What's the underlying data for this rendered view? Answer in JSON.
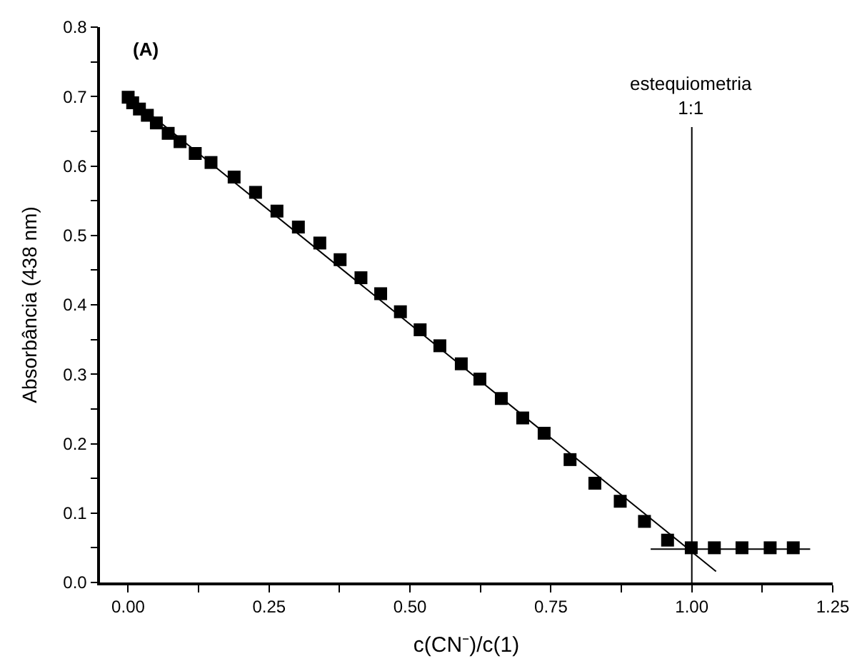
{
  "chart_data": {
    "type": "scatter",
    "xlabel": "c(CN⁻)/c(1)",
    "ylabel": "Absorbância (438 nm)",
    "annotations": [
      "(A)"
    ],
    "marker": "square",
    "xlim": [
      -0.05,
      1.25
    ],
    "ylim": [
      0,
      0.8
    ],
    "xticks": [
      {
        "value": 0,
        "label": "0.00"
      },
      {
        "value": 0.125,
        "label": null
      },
      {
        "value": 0.25,
        "label": "0.25"
      },
      {
        "value": 0.375,
        "label": null
      },
      {
        "value": 0.5,
        "label": "0.50"
      },
      {
        "value": 0.625,
        "label": null
      },
      {
        "value": 0.75,
        "label": "0.75"
      },
      {
        "value": 0.875,
        "label": null
      },
      {
        "value": 1,
        "label": "1.00"
      },
      {
        "value": 1.125,
        "label": null
      },
      {
        "value": 1.25,
        "label": "1.25"
      }
    ],
    "yticks": [
      {
        "value": 0,
        "label": "0.0"
      },
      {
        "value": 0.05,
        "label": null
      },
      {
        "value": 0.1,
        "label": "0.1"
      },
      {
        "value": 0.15,
        "label": null
      },
      {
        "value": 0.2,
        "label": "0.2"
      },
      {
        "value": 0.25,
        "label": null
      },
      {
        "value": 0.3,
        "label": "0.3"
      },
      {
        "value": 0.35,
        "label": null
      },
      {
        "value": 0.4,
        "label": "0.4"
      },
      {
        "value": 0.45,
        "label": null
      },
      {
        "value": 0.5,
        "label": "0.5"
      },
      {
        "value": 0.55,
        "label": null
      },
      {
        "value": 0.6,
        "label": "0.6"
      },
      {
        "value": 0.65,
        "label": null
      },
      {
        "value": 0.7,
        "label": "0.7"
      },
      {
        "value": 0.75,
        "label": null
      },
      {
        "value": 0.8,
        "label": "0.8"
      }
    ],
    "ref_lines": [
      {
        "axis": "x",
        "value": 1.0,
        "label": "estequiometria\n1:1",
        "color": "#000000"
      }
    ],
    "series": [
      {
        "color": "#000000",
        "x": [
          0.0,
          0.008,
          0.02,
          0.034,
          0.05,
          0.071,
          0.092,
          0.119,
          0.147,
          0.188,
          0.226,
          0.264,
          0.302,
          0.34,
          0.376,
          0.413,
          0.448,
          0.483,
          0.518,
          0.553,
          0.591,
          0.624,
          0.662,
          0.7,
          0.738,
          0.784,
          0.828,
          0.873,
          0.916,
          0.957,
          0.999,
          1.04,
          1.089,
          1.139,
          1.18
        ],
        "values": [
          0.699,
          0.691,
          0.682,
          0.673,
          0.662,
          0.647,
          0.635,
          0.618,
          0.605,
          0.584,
          0.562,
          0.535,
          0.512,
          0.489,
          0.465,
          0.439,
          0.416,
          0.39,
          0.364,
          0.341,
          0.315,
          0.293,
          0.265,
          0.237,
          0.215,
          0.177,
          0.143,
          0.117,
          0.088,
          0.061,
          0.05,
          0.05,
          0.05,
          0.05,
          0.05
        ]
      },
      {
        "type": "line",
        "color": "#000000",
        "marker": "none",
        "x": [
          0.0,
          1.043
        ],
        "values": [
          0.7,
          0.016
        ]
      },
      {
        "type": "line",
        "color": "#000000",
        "marker": "none",
        "x": [
          0.927,
          1.21
        ],
        "values": [
          0.048,
          0.048
        ]
      }
    ]
  }
}
